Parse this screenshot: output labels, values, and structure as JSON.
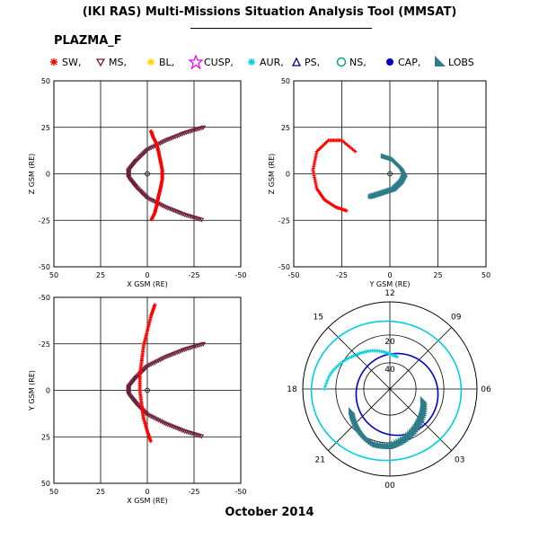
{
  "header": {
    "title": "(IKI RAS) Multi-Missions Situation Analysis Tool (MMSAT)",
    "instrument": "PLAZMA_F",
    "footer": "October 2014"
  },
  "legend": [
    {
      "label": "SW,",
      "color": "#ff0000",
      "icon": "asterisk-icon"
    },
    {
      "label": "MS,",
      "color": "#7a1a3a",
      "icon": "triangle-down-icon"
    },
    {
      "label": "BL,",
      "color": "#ffd700",
      "icon": "asterisk-icon"
    },
    {
      "label": "CUSP,",
      "color": "#ee00ee",
      "icon": "star-icon"
    },
    {
      "label": "AUR,",
      "color": "#00cfdf",
      "icon": "asterisk-icon"
    },
    {
      "label": "PS,",
      "color": "#000080",
      "icon": "triangle-up-icon"
    },
    {
      "label": "NS,",
      "color": "#00a080",
      "icon": "circle-icon"
    },
    {
      "label": "CAP,",
      "color": "#0000cc",
      "icon": "filled-circle-icon"
    },
    {
      "label": "LOBS",
      "color": "#2e7d8a",
      "icon": "filled-triangle-icon"
    }
  ],
  "chart_data": [
    {
      "type": "scatter",
      "title": "",
      "xlabel": "X GSM (RE)",
      "ylabel": "Z GSM (RE)",
      "xlim": [
        50,
        -50
      ],
      "ylim": [
        -50,
        50
      ],
      "xticks": [
        "50",
        "25",
        "0",
        "-25",
        "-50"
      ],
      "yticks": [
        "50",
        "25",
        "0",
        "-25",
        "-50"
      ],
      "grid": true,
      "series": [
        {
          "name": "MS",
          "color": "#6b1f3a",
          "x": [
            -30,
            -20,
            -10,
            0,
            6,
            10,
            10,
            6,
            0,
            -10,
            -20,
            -30
          ],
          "y": [
            25,
            22,
            18,
            13,
            7,
            2,
            -2,
            -7,
            -13,
            -18,
            -22,
            -25
          ]
        },
        {
          "name": "SW",
          "color": "#ff0000",
          "x": [
            -2,
            -3,
            -5,
            -6,
            -7,
            -8,
            -8,
            -7,
            -6,
            -5,
            -4,
            -2
          ],
          "y": [
            23,
            20,
            16,
            12,
            7,
            2,
            -3,
            -8,
            -12,
            -17,
            -21,
            -25
          ]
        }
      ]
    },
    {
      "type": "scatter",
      "title": "",
      "xlabel": "Y GSM (RE)",
      "ylabel": "Z GSM (RE)",
      "xlim": [
        -50,
        50
      ],
      "ylim": [
        -50,
        50
      ],
      "xticks": [
        "-50",
        "-25",
        "0",
        "25",
        "50"
      ],
      "yticks": [
        "50",
        "25",
        "0",
        "-25",
        "-50"
      ],
      "grid": true,
      "series": [
        {
          "name": "SW",
          "color": "#ff0000",
          "x": [
            -18,
            -25,
            -32,
            -38,
            -40,
            -38,
            -34,
            -28,
            -22
          ],
          "y": [
            12,
            18,
            18,
            12,
            2,
            -8,
            -14,
            -18,
            -20
          ]
        },
        {
          "name": "LOBS",
          "color": "#2e7d8a",
          "x": [
            -10,
            -4,
            2,
            6,
            8,
            6,
            2,
            -4
          ],
          "y": [
            -12,
            -10,
            -8,
            -4,
            0,
            4,
            8,
            10
          ]
        }
      ]
    },
    {
      "type": "scatter",
      "title": "",
      "xlabel": "X GSM (RE)",
      "ylabel": "Y GSM (RE)",
      "xlim": [
        50,
        -50
      ],
      "ylim": [
        -50,
        50
      ],
      "xticks": [
        "50",
        "25",
        "0",
        "-25",
        "-50"
      ],
      "yticks": [
        "-50",
        "-25",
        "0",
        "25",
        "50"
      ],
      "grid": true,
      "series": [
        {
          "name": "MS",
          "color": "#6b1f3a",
          "x": [
            -30,
            -20,
            -10,
            0,
            6,
            10,
            10,
            6,
            0,
            -10,
            -20,
            -30
          ],
          "y": [
            -25,
            -22,
            -18,
            -13,
            -7,
            -2,
            2,
            7,
            13,
            18,
            22,
            25
          ]
        },
        {
          "name": "SW",
          "color": "#ff0000",
          "x": [
            -4,
            -2,
            0,
            2,
            3,
            4,
            4,
            3,
            2,
            0,
            -2
          ],
          "y": [
            -46,
            -40,
            -32,
            -24,
            -16,
            -8,
            0,
            8,
            15,
            22,
            28
          ]
        }
      ]
    },
    {
      "type": "scatter",
      "title": "",
      "xlabel": "",
      "ylabel": "",
      "polar_labels": [
        "12",
        "09",
        "06",
        "03",
        "00",
        "21",
        "18",
        "15"
      ],
      "radial_labels": [
        "20",
        "40"
      ],
      "grid": true,
      "series": [
        {
          "name": "LOBS",
          "color": "#2e7d8a",
          "mlt": [
            20,
            21,
            22,
            23,
            0,
            1,
            2,
            3,
            4,
            5
          ],
          "lat": [
            70,
            68,
            66,
            64,
            64,
            66,
            68,
            70,
            72,
            74
          ]
        },
        {
          "name": "AUR",
          "color": "#00cfdf",
          "mlt": [
            18,
            17,
            16,
            15,
            14,
            13,
            12,
            11
          ],
          "lat": [
            60,
            62,
            65,
            68,
            70,
            72,
            74,
            75
          ]
        }
      ]
    }
  ]
}
